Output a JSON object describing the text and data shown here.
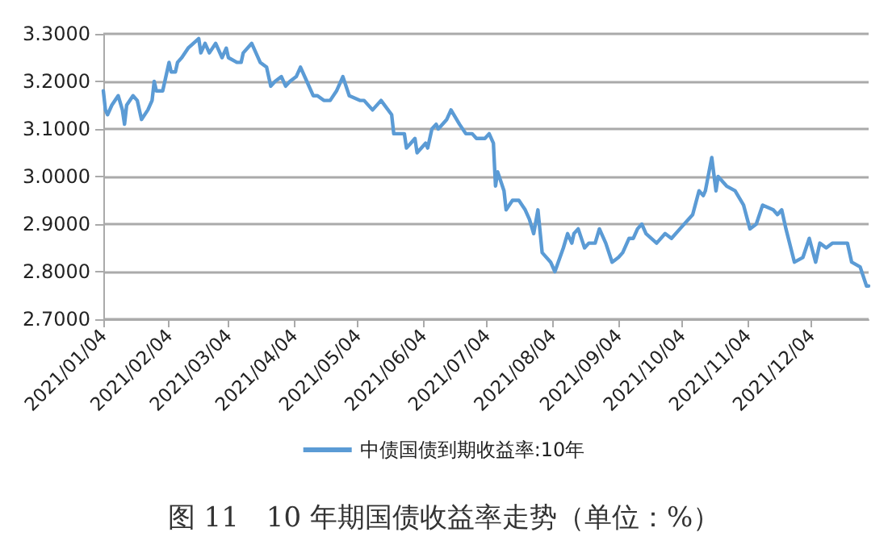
{
  "chart_data": {
    "type": "line",
    "title": "图 11　10 年期国债收益率走势（单位：%）",
    "x": [
      "2021-01-04",
      "2021-01-05",
      "2021-01-06",
      "2021-01-08",
      "2021-01-11",
      "2021-01-13",
      "2021-01-14",
      "2021-01-15",
      "2021-01-18",
      "2021-01-20",
      "2021-01-22",
      "2021-01-25",
      "2021-01-27",
      "2021-01-28",
      "2021-01-29",
      "2021-02-01",
      "2021-02-04",
      "2021-02-05",
      "2021-02-07",
      "2021-02-08",
      "2021-02-10",
      "2021-02-13",
      "2021-02-18",
      "2021-02-19",
      "2021-02-21",
      "2021-02-23",
      "2021-02-26",
      "2021-03-01",
      "2021-03-03",
      "2021-03-04",
      "2021-03-08",
      "2021-03-10",
      "2021-03-11",
      "2021-03-15",
      "2021-03-17",
      "2021-03-19",
      "2021-03-22",
      "2021-03-24",
      "2021-03-26",
      "2021-03-29",
      "2021-03-31",
      "2021-04-02",
      "2021-04-05",
      "2021-04-07",
      "2021-04-10",
      "2021-04-13",
      "2021-04-15",
      "2021-04-18",
      "2021-04-21",
      "2021-04-24",
      "2021-04-27",
      "2021-04-30",
      "2021-05-05",
      "2021-05-07",
      "2021-05-11",
      "2021-05-15",
      "2021-05-20",
      "2021-05-21",
      "2021-05-26",
      "2021-05-27",
      "2021-05-31",
      "2021-06-01",
      "2021-06-05",
      "2021-06-06",
      "2021-06-08",
      "2021-06-10",
      "2021-06-11",
      "2021-06-15",
      "2021-06-17",
      "2021-06-21",
      "2021-06-24",
      "2021-06-27",
      "2021-06-29",
      "2021-07-03",
      "2021-07-05",
      "2021-07-07",
      "2021-07-08",
      "2021-07-09",
      "2021-07-12",
      "2021-07-13",
      "2021-07-16",
      "2021-07-19",
      "2021-07-22",
      "2021-07-24",
      "2021-07-26",
      "2021-07-28",
      "2021-07-30",
      "2021-08-03",
      "2021-08-05",
      "2021-08-09",
      "2021-08-11",
      "2021-08-13",
      "2021-08-14",
      "2021-08-16",
      "2021-08-19",
      "2021-08-21",
      "2021-08-24",
      "2021-08-26",
      "2021-08-29",
      "2021-09-01",
      "2021-09-04",
      "2021-09-06",
      "2021-09-09",
      "2021-09-11",
      "2021-09-13",
      "2021-09-15",
      "2021-09-17",
      "2021-09-22",
      "2021-09-26",
      "2021-09-29",
      "2021-10-03",
      "2021-10-09",
      "2021-10-12",
      "2021-10-14",
      "2021-10-15",
      "2021-10-18",
      "2021-10-20",
      "2021-10-21",
      "2021-10-25",
      "2021-10-29",
      "2021-11-02",
      "2021-11-05",
      "2021-11-08",
      "2021-11-11",
      "2021-11-16",
      "2021-11-18",
      "2021-11-20",
      "2021-11-22",
      "2021-11-26",
      "2021-11-30",
      "2021-12-03",
      "2021-12-06",
      "2021-12-08",
      "2021-12-11",
      "2021-12-14",
      "2021-12-18",
      "2021-12-21",
      "2021-12-23",
      "2021-12-27",
      "2021-12-30",
      "2021-12-31"
    ],
    "series": [
      {
        "name": "中债国债到期收益率:10年",
        "color": "#5b9bd5",
        "values": [
          3.18,
          3.14,
          3.13,
          3.15,
          3.17,
          3.14,
          3.11,
          3.15,
          3.17,
          3.16,
          3.12,
          3.14,
          3.16,
          3.2,
          3.18,
          3.18,
          3.24,
          3.22,
          3.22,
          3.24,
          3.25,
          3.27,
          3.29,
          3.26,
          3.28,
          3.26,
          3.28,
          3.25,
          3.27,
          3.25,
          3.24,
          3.24,
          3.26,
          3.28,
          3.26,
          3.24,
          3.23,
          3.19,
          3.2,
          3.21,
          3.19,
          3.2,
          3.21,
          3.23,
          3.2,
          3.17,
          3.17,
          3.16,
          3.16,
          3.18,
          3.21,
          3.17,
          3.16,
          3.16,
          3.14,
          3.16,
          3.13,
          3.09,
          3.09,
          3.06,
          3.08,
          3.05,
          3.07,
          3.06,
          3.1,
          3.11,
          3.1,
          3.12,
          3.14,
          3.11,
          3.09,
          3.09,
          3.08,
          3.08,
          3.09,
          3.07,
          2.98,
          3.01,
          2.97,
          2.93,
          2.95,
          2.95,
          2.93,
          2.91,
          2.88,
          2.93,
          2.84,
          2.82,
          2.8,
          2.85,
          2.88,
          2.86,
          2.88,
          2.89,
          2.85,
          2.86,
          2.86,
          2.89,
          2.86,
          2.82,
          2.83,
          2.84,
          2.87,
          2.87,
          2.89,
          2.9,
          2.88,
          2.86,
          2.88,
          2.87,
          2.89,
          2.92,
          2.97,
          2.96,
          2.97,
          3.04,
          2.97,
          3.0,
          2.98,
          2.97,
          2.94,
          2.89,
          2.9,
          2.94,
          2.93,
          2.92,
          2.93,
          2.89,
          2.82,
          2.83,
          2.87,
          2.82,
          2.86,
          2.85,
          2.86,
          2.86,
          2.86,
          2.82,
          2.81,
          2.77,
          2.77
        ]
      }
    ],
    "xlim": [
      "2021-01-04",
      "2021-12-31"
    ],
    "xticks": [
      {
        "value": "2021-01-04",
        "label": "2021/01/04"
      },
      {
        "value": "2021-02-04",
        "label": "2021/02/04"
      },
      {
        "value": "2021-03-04",
        "label": "2021/03/04"
      },
      {
        "value": "2021-04-04",
        "label": "2021/04/04"
      },
      {
        "value": "2021-05-04",
        "label": "2021/05/04"
      },
      {
        "value": "2021-06-04",
        "label": "2021/06/04"
      },
      {
        "value": "2021-07-04",
        "label": "2021/07/04"
      },
      {
        "value": "2021-08-04",
        "label": "2021/08/04"
      },
      {
        "value": "2021-09-04",
        "label": "2021/09/04"
      },
      {
        "value": "2021-10-04",
        "label": "2021/10/04"
      },
      {
        "value": "2021-11-04",
        "label": "2021/11/04"
      },
      {
        "value": "2021-12-04",
        "label": "2021/12/04"
      }
    ],
    "ylim": [
      2.7,
      3.3
    ],
    "yticks": [
      {
        "value": 2.7,
        "label": "2.7000"
      },
      {
        "value": 2.8,
        "label": "2.8000"
      },
      {
        "value": 2.9,
        "label": "2.9000"
      },
      {
        "value": 3.0,
        "label": "3.0000"
      },
      {
        "value": 3.1,
        "label": "3.1000"
      },
      {
        "value": 3.2,
        "label": "3.2000"
      },
      {
        "value": 3.3,
        "label": "3.3000"
      }
    ],
    "grid": "y",
    "legend": "bottom",
    "marker": "none",
    "line_style": "solid"
  }
}
